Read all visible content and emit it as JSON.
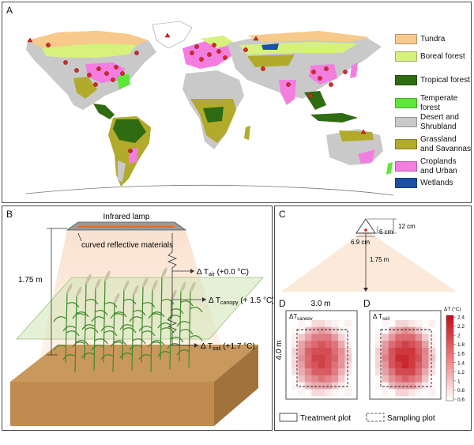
{
  "panel_a": {
    "label": "A",
    "legend": [
      {
        "label": "Tundra",
        "color": "#f7c98a"
      },
      {
        "label": "Boreal forest",
        "color": "#d6f27c"
      },
      {
        "label": "Tropical forest",
        "color": "#2e6b12"
      },
      {
        "label": "Temperate\nforest",
        "color": "#5fe63a"
      },
      {
        "label": "Desert and\nShrubland",
        "color": "#c9c9c9"
      },
      {
        "label": "Grassland\nand Savannas",
        "color": "#b1aa2a"
      },
      {
        "label": "Croplands\nand Urban",
        "color": "#f47ee0"
      },
      {
        "label": "Wetlands",
        "color": "#1d4fa5"
      }
    ],
    "site_marker_color": "#d62828"
  },
  "panel_b": {
    "label": "B",
    "lamp": "Infrared lamp",
    "reflector": "curved reflective materials",
    "height": "1.75 m",
    "air": {
      "prefix": "Δ T",
      "sub": "air",
      "value": " (+0.0 °C)"
    },
    "canopy": {
      "prefix": "Δ T",
      "sub": "canopy",
      "value": " (+ 1.5 °C)"
    },
    "soil": {
      "prefix": "Δ T",
      "sub": "soil",
      "value": " (+1.7 °C)"
    }
  },
  "panel_c": {
    "label": "C",
    "dim_12": "12 cm",
    "dim_6": "6 cm",
    "dim_69": "6.9 cm",
    "dim_175": "1.75 m"
  },
  "panel_d": {
    "label_left": "D",
    "label_right": "D",
    "width": "3.0 m",
    "length": "4.0 m",
    "left_title": {
      "prefix": "ΔT",
      "sub": "canopy"
    },
    "right_title": {
      "prefix": "Δ T",
      "sub": "soil"
    },
    "colorbar_title": "ΔT (°C)",
    "colorbar_ticks": [
      "2.4",
      "2.2",
      "2",
      "1.8",
      "1.6",
      "1.4",
      "1.2",
      "1",
      "0.8",
      "0.6"
    ],
    "legend_treatment": "Treatment plot",
    "legend_sampling": "Sampling plot"
  }
}
